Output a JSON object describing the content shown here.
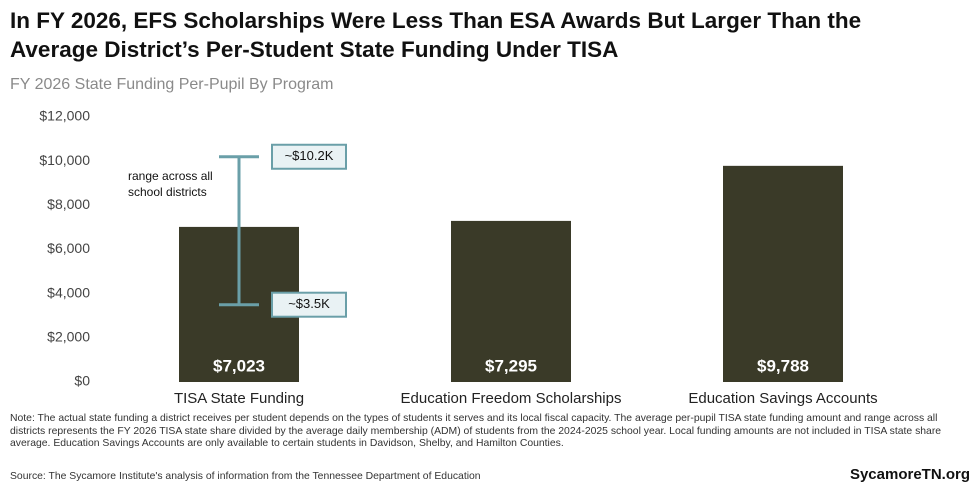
{
  "chart_data": {
    "type": "bar",
    "title": "In FY 2026, EFS Scholarships Were Less Than ESA Awards But Larger Than the Average District’s Per-Student State Funding Under TISA",
    "subtitle": "FY 2026 State Funding Per-Pupil By Program",
    "categories": [
      "TISA State Funding",
      "Education Freedom Scholarships",
      "Education Savings Accounts"
    ],
    "values": [
      7023,
      7295,
      9788
    ],
    "value_labels": [
      "$7,023",
      "$7,295",
      "$9,788"
    ],
    "color": "#3a3a28",
    "ylim": [
      0,
      12000
    ],
    "yticks": [
      {
        "value": 0,
        "label": "$0"
      },
      {
        "value": 2000,
        "label": "$2,000"
      },
      {
        "value": 4000,
        "label": "$4,000"
      },
      {
        "value": 6000,
        "label": "$6,000"
      },
      {
        "value": 8000,
        "label": "$8,000"
      },
      {
        "value": 10000,
        "label": "$10,000"
      },
      {
        "value": 12000,
        "label": "$12,000"
      }
    ],
    "grid": false,
    "range": {
      "category": 0,
      "low": 3500,
      "high": 10200,
      "low_label": "~$3.5K",
      "high_label": "~$10.2K",
      "label": "range across all school districts",
      "color": "#6a9fa8"
    },
    "note": "Note: The actual state funding a district receives per student depends on the types of students it serves and its local fiscal capacity. The average per-pupil TISA state funding amount and range across all districts represents the FY 2026 TISA state share divided by the average daily membership (ADM) of students from the 2024-2025 school year. Local funding amounts are not included in TISA state share average. Education Savings Accounts are only available to certain students in Davidson, Shelby, and Hamilton Counties.",
    "source": "Source: The Sycamore Institute's analysis of information from the Tennessee Department of Education",
    "brand": "SycamoreTN.org"
  }
}
